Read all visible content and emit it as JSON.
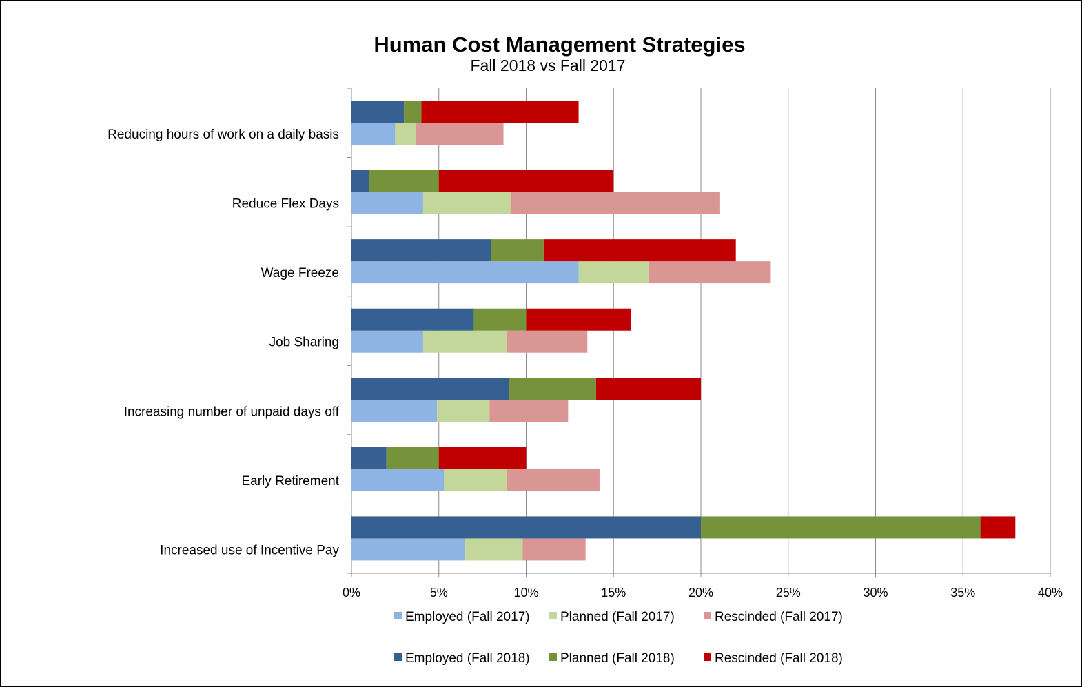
{
  "chart_data": {
    "type": "bar",
    "orientation": "horizontal",
    "stacked": true,
    "title": "Human Cost Management Strategies",
    "subtitle": "Fall 2018 vs Fall 2017",
    "categories": [
      "Reducing hours of work on a daily basis",
      "Reduce Flex Days",
      "Wage Freeze",
      "Job Sharing",
      "Increasing number of unpaid days off",
      "Early Retirement",
      "Increased use of Incentive Pay"
    ],
    "xlim": [
      0,
      40
    ],
    "x_ticks": [
      0,
      5,
      10,
      15,
      20,
      25,
      30,
      35,
      40
    ],
    "x_tick_labels": [
      "0%",
      "5%",
      "10%",
      "15%",
      "20%",
      "25%",
      "30%",
      "35%",
      "40%"
    ],
    "grid": "vertical",
    "legend_position": "bottom",
    "series": [
      {
        "name": "Employed (Fall 2017)",
        "group": "Fall 2017",
        "color": "#8eb4e3",
        "values": [
          2.5,
          4.1,
          13.0,
          4.1,
          4.9,
          5.3,
          6.5
        ]
      },
      {
        "name": "Planned (Fall 2017)",
        "group": "Fall 2017",
        "color": "#c4d79b",
        "values": [
          1.2,
          5.0,
          4.0,
          4.8,
          3.0,
          3.6,
          3.3
        ]
      },
      {
        "name": "Rescinded (Fall 2017)",
        "group": "Fall 2017",
        "color": "#d99694",
        "values": [
          5.0,
          12.0,
          7.0,
          4.6,
          4.5,
          5.3,
          3.6
        ]
      },
      {
        "name": "Employed (Fall 2018)",
        "group": "Fall 2018",
        "color": "#366092",
        "values": [
          3.0,
          1.0,
          8.0,
          7.0,
          9.0,
          2.0,
          20.0
        ]
      },
      {
        "name": "Planned (Fall 2018)",
        "group": "Fall 2018",
        "color": "#76933c",
        "values": [
          1.0,
          4.0,
          3.0,
          3.0,
          5.0,
          3.0,
          16.0
        ]
      },
      {
        "name": "Rescinded (Fall 2018)",
        "group": "Fall 2018",
        "color": "#c00000",
        "values": [
          9.0,
          10.0,
          11.0,
          6.0,
          6.0,
          5.0,
          2.0
        ]
      }
    ]
  }
}
